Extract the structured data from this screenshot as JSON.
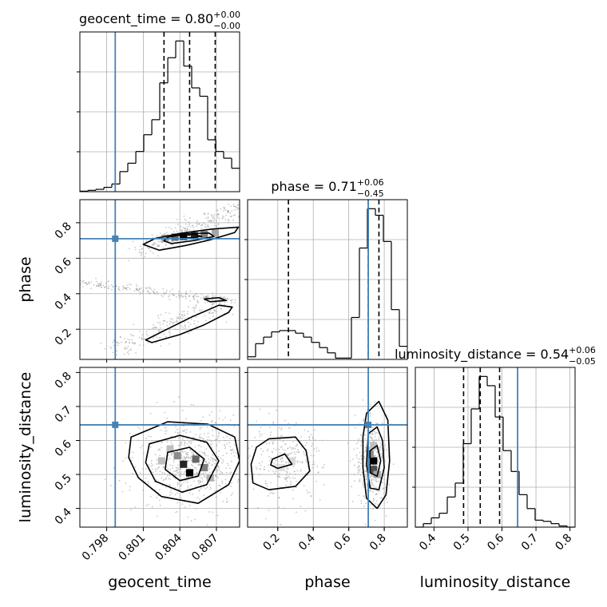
{
  "chart_data": {
    "type": "corner",
    "parameters": [
      "geocent_time",
      "phase",
      "luminosity_distance"
    ],
    "axis_labels": {
      "geocent_time": "geocent_time",
      "phase": "phase",
      "luminosity_distance": "luminosity_distance"
    },
    "titles": [
      {
        "param": "geocent_time",
        "label": "geocent_time",
        "median": "0.80",
        "plus": "+0.00",
        "minus": "−0.00"
      },
      {
        "param": "phase",
        "label": "phase",
        "median": "0.71",
        "plus": "+0.06",
        "minus": "−0.45"
      },
      {
        "param": "luminosity_distance",
        "label": "luminosity_distance",
        "median": "0.54",
        "plus": "+0.06",
        "minus": "−0.05"
      }
    ],
    "ranges": {
      "geocent_time": [
        0.7958,
        0.8089
      ],
      "phase": [
        0.03,
        0.93
      ],
      "luminosity_distance": [
        0.345,
        0.815
      ]
    },
    "ticks": {
      "geocent_time": [
        0.798,
        0.801,
        0.804,
        0.807
      ],
      "phase": [
        0.2,
        0.4,
        0.6,
        0.8
      ],
      "luminosity_distance": [
        0.4,
        0.5,
        0.6,
        0.7,
        0.8
      ]
    },
    "tick_labels": {
      "geocent_time": [
        "0.798",
        "0.801",
        "0.804",
        "0.807"
      ],
      "phase": [
        "0.2",
        "0.4",
        "0.6",
        "0.8"
      ],
      "luminosity_distance": [
        "0.4",
        "0.5",
        "0.6",
        "0.7",
        "0.8"
      ]
    },
    "truths": {
      "geocent_time": 0.7987,
      "phase": 0.71,
      "luminosity_distance": 0.646
    },
    "quantiles": {
      "geocent_time": [
        0.8027,
        0.8048,
        0.8069
      ],
      "phase": [
        0.26,
        0.71,
        0.77
      ],
      "luminosity_distance": [
        0.487,
        0.536,
        0.593
      ]
    },
    "histograms": {
      "geocent_time": {
        "edges": [
          0.7958,
          0.79646,
          0.79711,
          0.79777,
          0.79842,
          0.79908,
          0.79973,
          0.80039,
          0.80104,
          0.8017,
          0.80235,
          0.80301,
          0.80366,
          0.80432,
          0.80497,
          0.80563,
          0.80628,
          0.80694,
          0.80759,
          0.80825,
          0.8089
        ],
        "counts": [
          0.3,
          0.8,
          1.4,
          2.6,
          4.6,
          12,
          17,
          24,
          34,
          43,
          65,
          80,
          90,
          75,
          62,
          57,
          31,
          24,
          20,
          14
        ]
      },
      "phase": {
        "edges": [
          0.03,
          0.075,
          0.12,
          0.165,
          0.21,
          0.255,
          0.3,
          0.345,
          0.39,
          0.435,
          0.48,
          0.525,
          0.57,
          0.615,
          0.66,
          0.705,
          0.75,
          0.795,
          0.84,
          0.885,
          0.93
        ],
        "counts": [
          2,
          12,
          17,
          21,
          22,
          22,
          20,
          17,
          13,
          9,
          5,
          1,
          1,
          32,
          85,
          115,
          110,
          90,
          38,
          10
        ]
      },
      "luminosity_distance": {
        "edges": [
          0.345,
          0.3685,
          0.392,
          0.4155,
          0.439,
          0.4625,
          0.486,
          0.5095,
          0.533,
          0.5565,
          0.58,
          0.6035,
          0.627,
          0.6505,
          0.674,
          0.6975,
          0.721,
          0.7445,
          0.768,
          0.7915,
          0.815
        ],
        "counts": [
          0,
          3,
          8,
          12,
          26,
          38,
          72,
          102,
          130,
          122,
          95,
          66,
          48,
          28,
          16,
          6,
          5,
          3,
          1,
          0
        ]
      }
    },
    "grid": true,
    "colors": {
      "truth": "#4682b4",
      "line": "#000000",
      "samples": "#9a9a9a"
    }
  }
}
